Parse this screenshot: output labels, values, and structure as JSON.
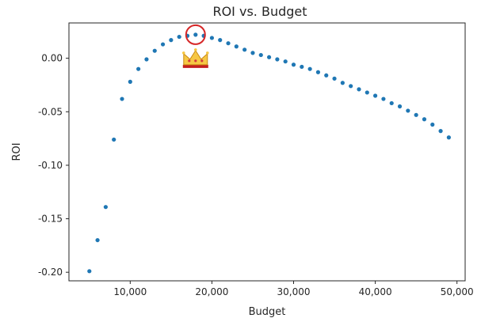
{
  "chart_data": {
    "type": "scatter",
    "title": "ROI vs. Budget",
    "xlabel": "Budget",
    "ylabel": "ROI",
    "xlim": [
      2500,
      51000
    ],
    "ylim": [
      -0.208,
      0.033
    ],
    "x_ticks": [
      10000,
      20000,
      30000,
      40000,
      50000
    ],
    "x_tick_labels": [
      "10,000",
      "20,000",
      "30,000",
      "40,000",
      "50,000"
    ],
    "y_ticks": [
      0.0,
      -0.05,
      -0.1,
      -0.15,
      -0.2
    ],
    "y_tick_labels": [
      "0.00",
      "-0.05",
      "-0.10",
      "-0.15",
      "-0.20"
    ],
    "grid": false,
    "marker_color": "#1f77b4",
    "highlight": {
      "x": 18000,
      "y": 0.022,
      "marker": "circle",
      "color": "#d62728"
    },
    "annotation_icon": "crown-icon",
    "series": [
      {
        "x": [
          5000,
          6000,
          7000,
          8000,
          9000,
          10000,
          11000,
          12000,
          13000,
          14000,
          15000,
          16000,
          17000,
          18000,
          19000,
          20000,
          21000,
          22000,
          23000,
          24000,
          25000,
          26000,
          27000,
          28000,
          29000,
          30000,
          31000,
          32000,
          33000,
          34000,
          35000,
          36000,
          37000,
          38000,
          39000,
          40000,
          41000,
          42000,
          43000,
          44000,
          45000,
          46000,
          47000,
          48000,
          49000
        ],
        "y": [
          -0.199,
          -0.17,
          -0.139,
          -0.076,
          -0.038,
          -0.022,
          -0.01,
          -0.001,
          0.007,
          0.013,
          0.017,
          0.02,
          0.021,
          0.022,
          0.021,
          0.019,
          0.017,
          0.014,
          0.011,
          0.008,
          0.005,
          0.003,
          0.001,
          -0.001,
          -0.003,
          -0.006,
          -0.008,
          -0.01,
          -0.013,
          -0.016,
          -0.019,
          -0.023,
          -0.026,
          -0.029,
          -0.032,
          -0.035,
          -0.038,
          -0.042,
          -0.045,
          -0.049,
          -0.053,
          -0.057,
          -0.062,
          -0.068,
          -0.074
        ]
      }
    ]
  }
}
